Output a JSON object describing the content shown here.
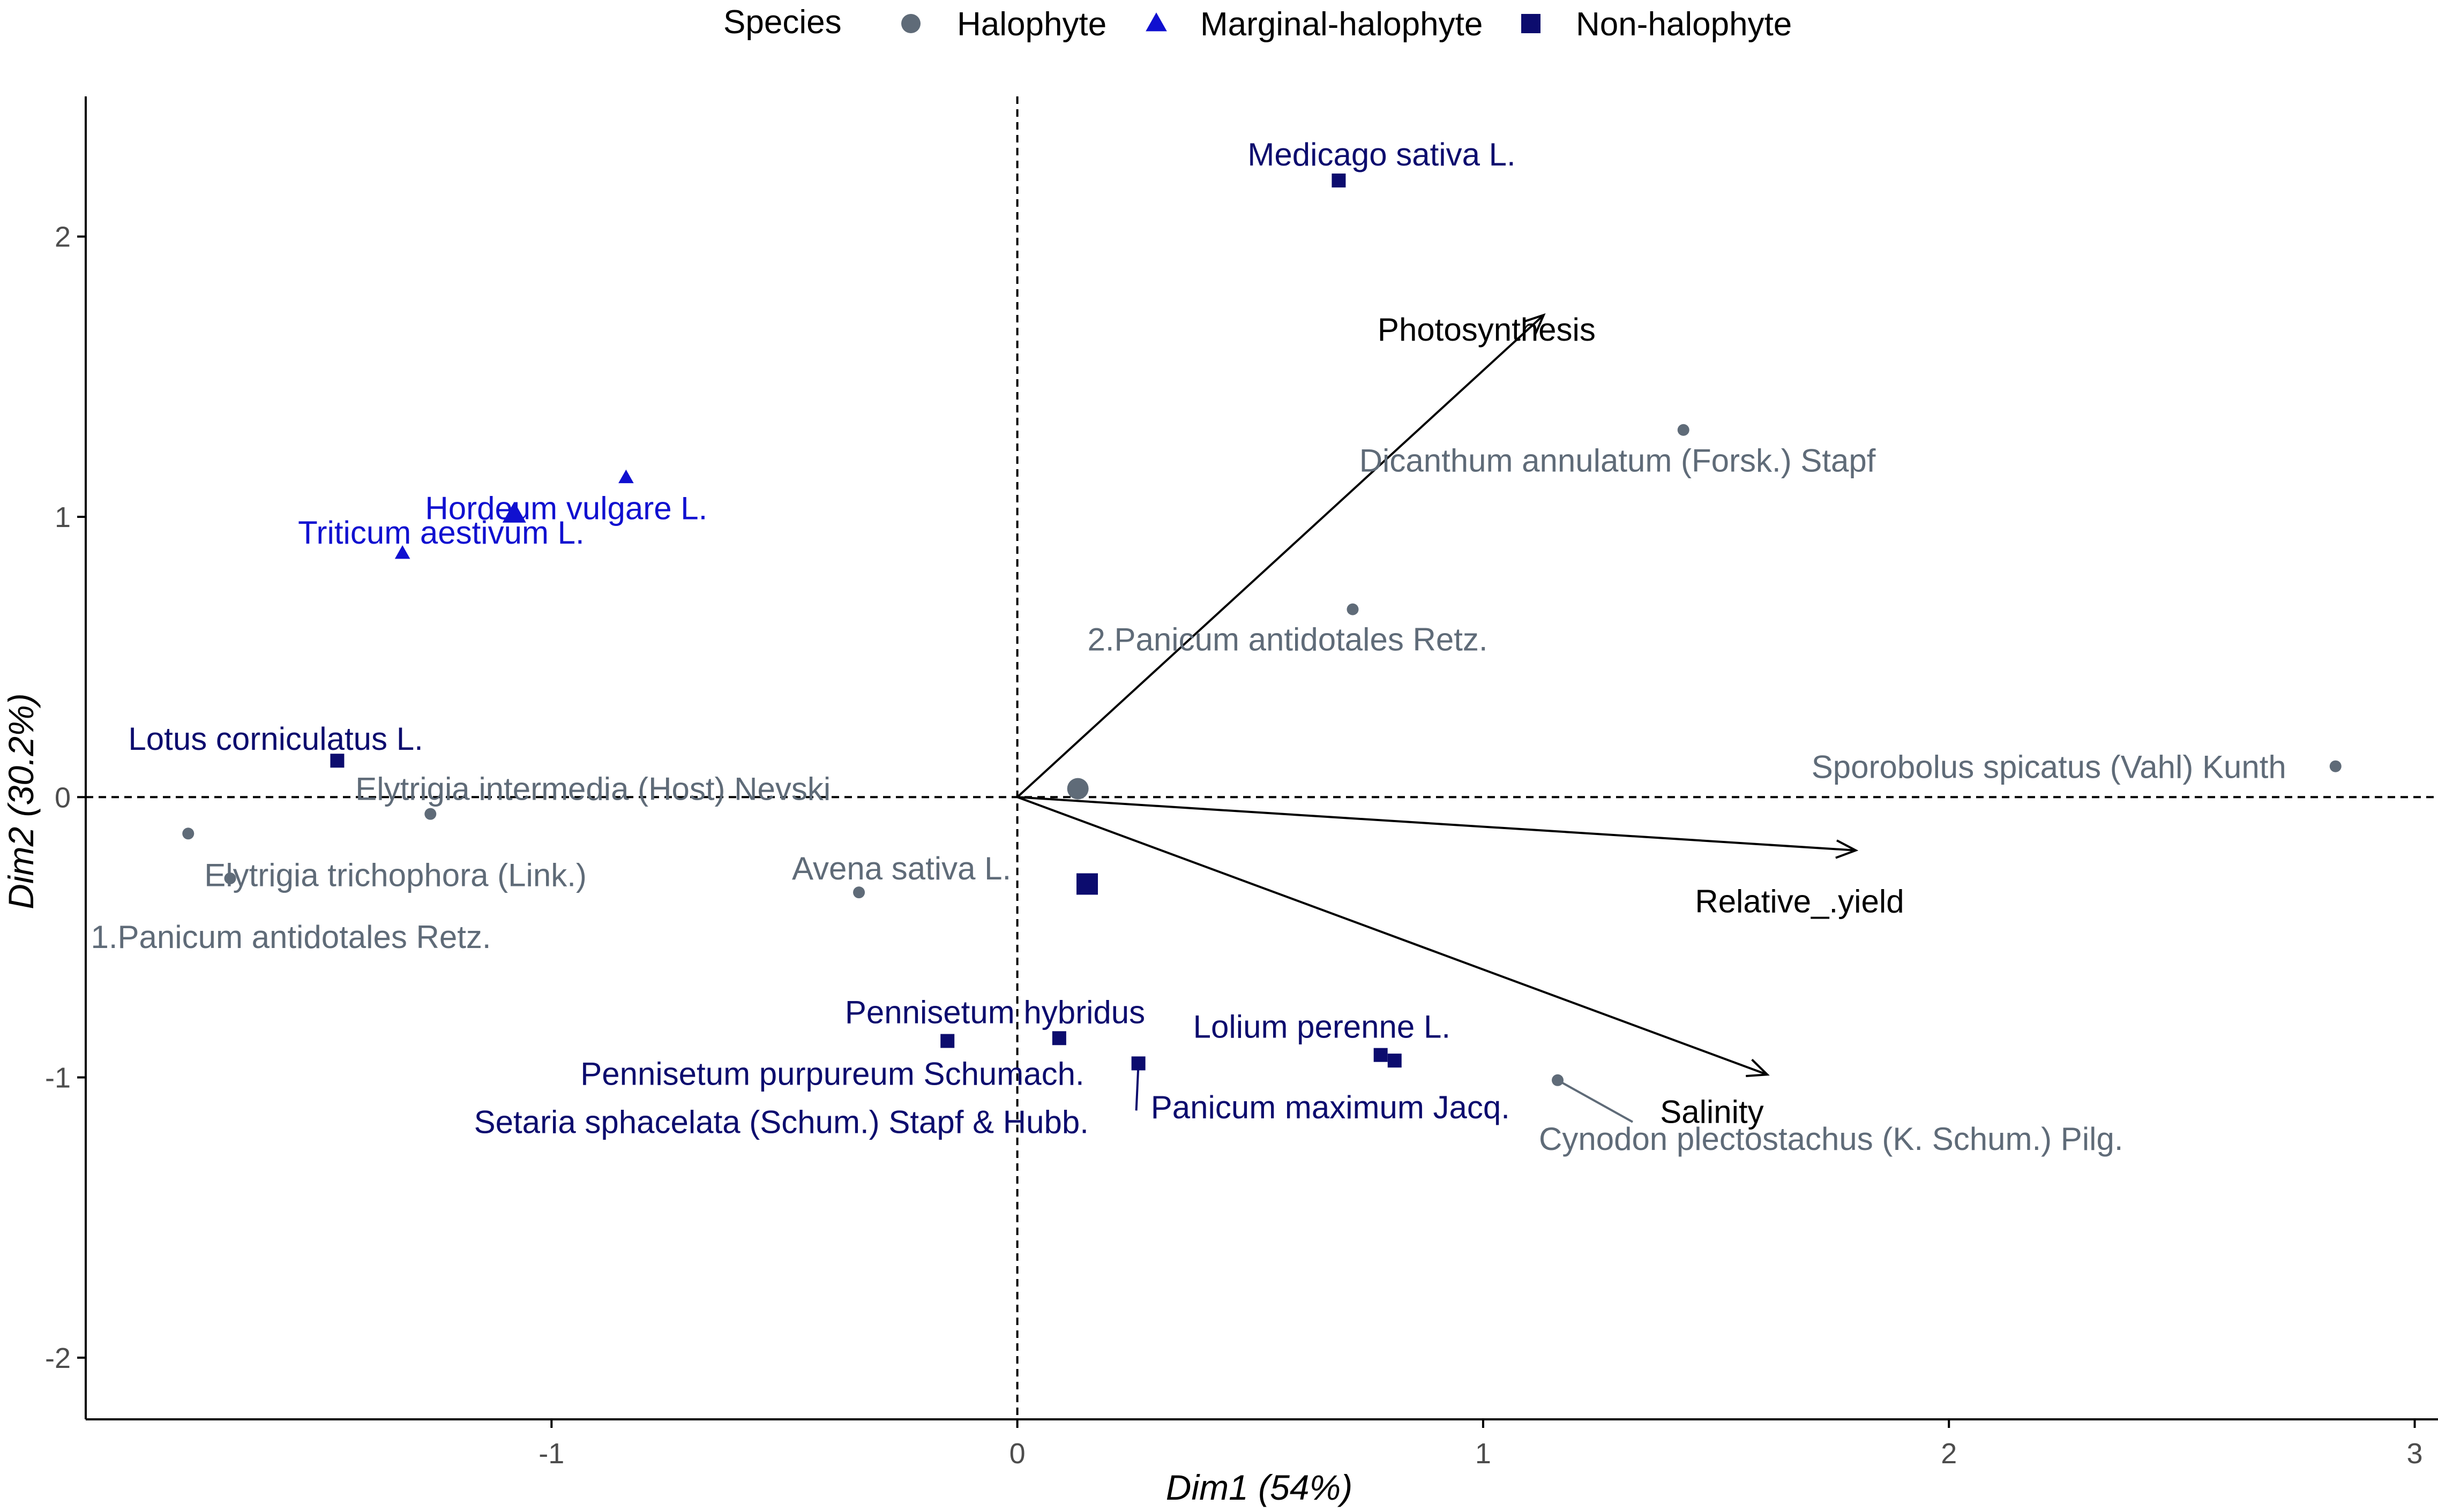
{
  "chart_data": {
    "type": "scatter",
    "subtype": "pca-biplot",
    "title": "",
    "xlabel": "Dim1 (54%)",
    "ylabel": "Dim2 (30.2%)",
    "xlim": [
      -2.0,
      3.05
    ],
    "ylim": [
      -2.22,
      2.5
    ],
    "xticks": [
      -1,
      0,
      1,
      2,
      3
    ],
    "yticks": [
      -2,
      -1,
      0,
      1,
      2
    ],
    "grid": false,
    "reference_lines": {
      "x": 0,
      "y": 0,
      "style": "dashed"
    },
    "legend": {
      "title": "Species",
      "position": "top",
      "entries": [
        {
          "name": "Halophyte",
          "shape": "circle",
          "color": "#5f6b78"
        },
        {
          "name": "Marginal-halophyte",
          "shape": "triangle",
          "color": "#1010d0"
        },
        {
          "name": "Non-halophyte",
          "shape": "square",
          "color": "#0c0c6e"
        }
      ]
    },
    "colors": {
      "Halophyte": "#5f6b78",
      "Marginal-halophyte": "#1010d0",
      "Non-halophyte": "#0c0c6e",
      "vectors": "#000000"
    },
    "points": [
      {
        "label": "Medicago sativa L.",
        "group": "Non-halophyte",
        "x": 0.69,
        "y": 2.2
      },
      {
        "label": "Dicanthum annulatum (Forsk.) Stapf",
        "group": "Halophyte",
        "x": 1.43,
        "y": 1.31
      },
      {
        "label": "2.Panicum antidotales Retz.",
        "group": "Halophyte",
        "x": 0.72,
        "y": 0.67
      },
      {
        "label": "Sporobolus spicatus (Vahl) Kunth",
        "group": "Halophyte",
        "x": 2.83,
        "y": 0.11
      },
      {
        "label": "Hordeum vulgare L.",
        "group": "Marginal-halophyte",
        "x": -0.84,
        "y": 1.14
      },
      {
        "label": "Triticum aestivum L.",
        "group": "Marginal-halophyte",
        "x": -1.32,
        "y": 0.87
      },
      {
        "label": "Lotus corniculatus L.",
        "group": "Non-halophyte",
        "x": -1.46,
        "y": 0.13
      },
      {
        "label": "Elytrigia intermedia (Host) Nevski",
        "group": "Halophyte",
        "x": -1.26,
        "y": -0.06
      },
      {
        "label": "Elytrigia trichophora (Link.)",
        "group": "Halophyte",
        "x": -1.78,
        "y": -0.13
      },
      {
        "label": "1.Panicum antidotales Retz.",
        "group": "Halophyte",
        "x": -1.69,
        "y": -0.29
      },
      {
        "label": "Avena sativa L.",
        "group": "Halophyte",
        "x": -0.34,
        "y": -0.34
      },
      {
        "label": "Pennisetum hybridus",
        "group": "Non-halophyte",
        "x": 0.09,
        "y": -0.86
      },
      {
        "label": "Pennisetum purpureum Schumach.",
        "group": "Non-halophyte",
        "x": -0.15,
        "y": -0.87
      },
      {
        "label": "Setaria sphacelata (Schum.) Stapf & Hubb.",
        "group": "Non-halophyte",
        "x": 0.26,
        "y": -0.95
      },
      {
        "label": "Lolium perenne L.",
        "group": "Non-halophyte",
        "x": 0.78,
        "y": -0.92
      },
      {
        "label": "Panicum maximum Jacq.",
        "group": "Non-halophyte",
        "x": 0.81,
        "y": -0.94
      },
      {
        "label": "Cynodon plectostachus (K. Schum.) Pilg.",
        "group": "Halophyte",
        "x": 1.16,
        "y": -1.01
      }
    ],
    "centroids": [
      {
        "group": "Halophyte",
        "x": 0.13,
        "y": 0.03
      },
      {
        "group": "Marginal-halophyte",
        "x": -1.08,
        "y": 1.01
      },
      {
        "group": "Non-halophyte",
        "x": 0.15,
        "y": -0.31
      }
    ],
    "vectors": [
      {
        "label": "Photosynthesis",
        "x": 1.13,
        "y": 1.72
      },
      {
        "label": "Relative_.yield",
        "x": 1.8,
        "y": -0.19
      },
      {
        "label": "Salinity",
        "x": 1.61,
        "y": -0.99
      }
    ]
  }
}
